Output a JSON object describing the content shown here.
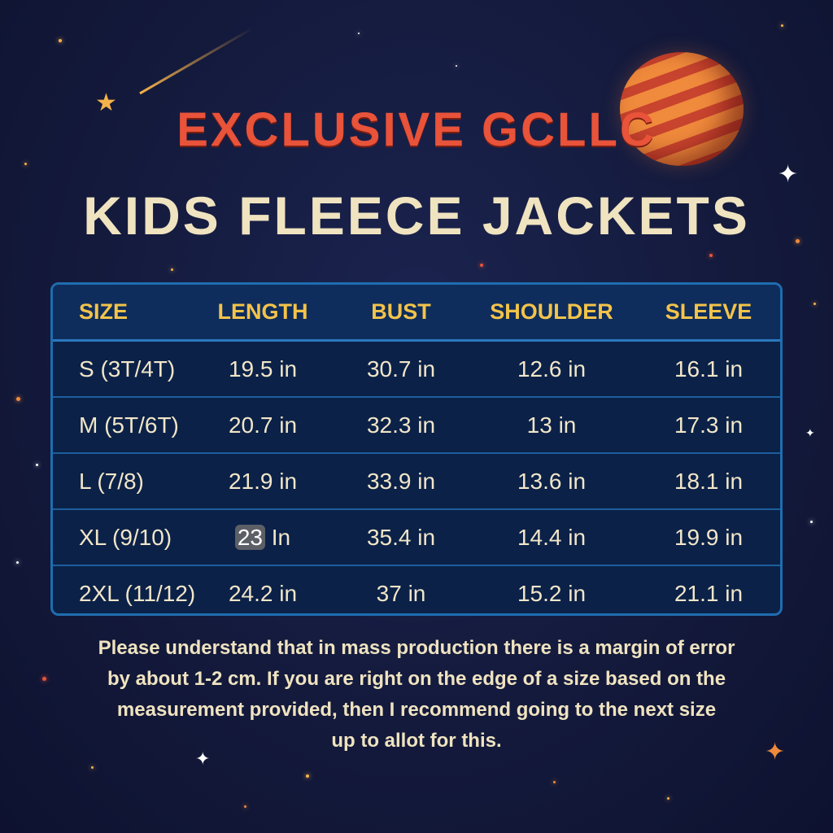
{
  "title": {
    "line1": "EXCLUSIVE GCLLC",
    "line2": "KIDS FLEECE JACKETS"
  },
  "colors": {
    "title_accent": "#e8533a",
    "title_main": "#efe3c0",
    "header_text": "#f3c34a",
    "table_bg": "#0b2148",
    "table_border": "#1f6db0"
  },
  "decorations": [
    "planet-icon",
    "shooting-star-icon",
    "star-icon"
  ],
  "table": {
    "headers": [
      "SIZE",
      "LENGTH",
      "BUST",
      "SHOULDER",
      "SLEEVE"
    ],
    "rows": [
      [
        "S (3T/4T)",
        "19.5 in",
        "30.7 in",
        "12.6 in",
        "16.1 in"
      ],
      [
        "M (5T/6T)",
        "20.7 in",
        "32.3 in",
        "13 in",
        "17.3 in"
      ],
      [
        "L (7/8)",
        "21.9 in",
        "33.9 in",
        "13.6 in",
        "18.1 in"
      ],
      [
        "XL (9/10)",
        {
          "highlighted": "23",
          "rest": " In"
        },
        "35.4 in",
        "14.4 in",
        "19.9 in"
      ],
      [
        "2XL (11/12)",
        "24.2 in",
        "37 in",
        "15.2 in",
        "21.1 in"
      ]
    ]
  },
  "note": {
    "lines": [
      "Please understand that in mass production there is a margin of error",
      "by about 1-2 cm. If you are right on the edge of a size based on the",
      "measurement provided, then I recommend going to the next size",
      "up to allot for this."
    ]
  }
}
